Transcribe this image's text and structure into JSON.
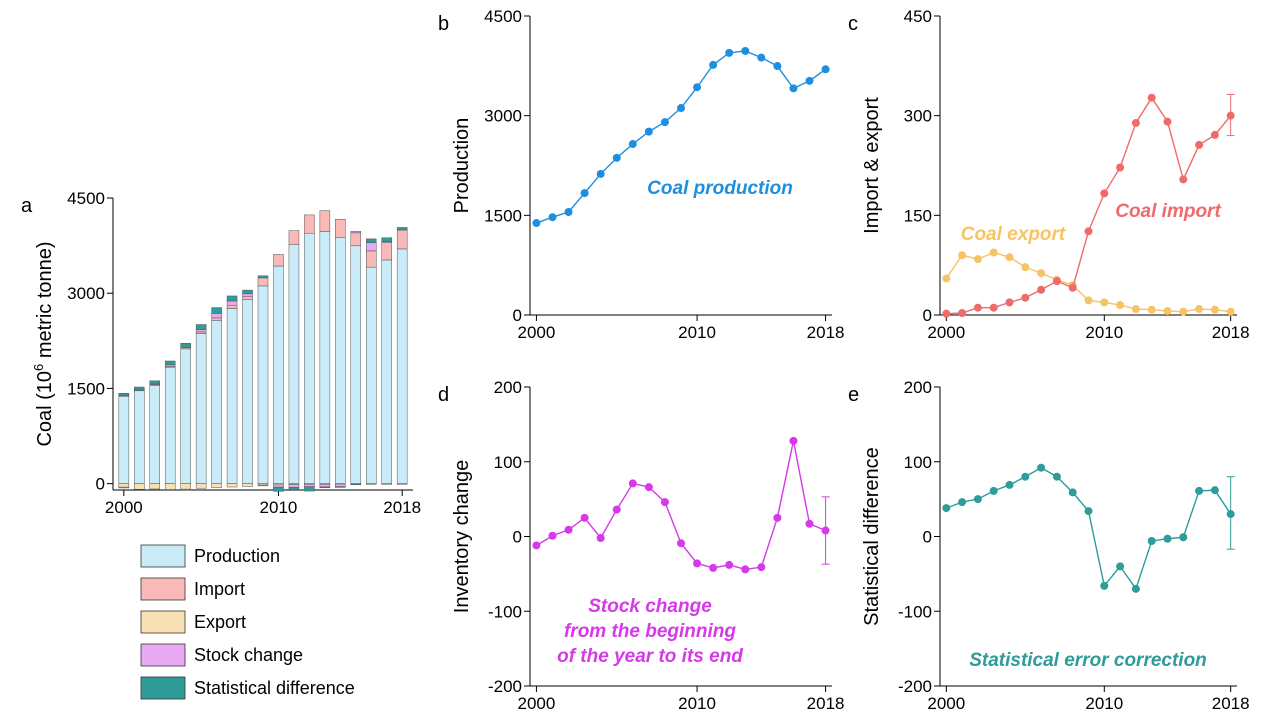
{
  "chart_data": [
    {
      "panel": "a",
      "type": "bar",
      "ylabel": "Coal (10",
      "ylabel_sup": "6",
      "ylabel_end": " metric tonne)",
      "ylim": [
        -100,
        4500
      ],
      "yticks": [
        0,
        1500,
        3000,
        4500
      ],
      "xticks": [
        2000,
        2010,
        2018
      ],
      "stacked": true,
      "categories": [
        2000,
        2001,
        2002,
        2003,
        2004,
        2005,
        2006,
        2007,
        2008,
        2009,
        2010,
        2011,
        2012,
        2013,
        2014,
        2015,
        2016,
        2017,
        2018
      ],
      "series": [
        {
          "name": "Production",
          "color": "#c9ecf8",
          "values": [
            1384,
            1472,
            1550,
            1835,
            2123,
            2365,
            2573,
            2760,
            2903,
            3115,
            3428,
            3764,
            3945,
            3974,
            3874,
            3747,
            3411,
            3524,
            3698
          ]
        },
        {
          "name": "Import",
          "color": "#f9b9b9",
          "values": [
            2,
            3,
            11,
            11,
            19,
            26,
            38,
            51,
            41,
            126,
            183,
            222,
            289,
            327,
            291,
            204,
            256,
            271,
            300
          ]
        },
        {
          "name": "Export",
          "color": "#f8e0b4",
          "values": [
            -55,
            -90,
            -84,
            -94,
            -87,
            -72,
            -63,
            -53,
            -45,
            -22,
            -19,
            -15,
            -9,
            -8,
            -6,
            -5,
            -9,
            -8,
            -5
          ]
        },
        {
          "name": "Stock change",
          "color": "#e8a8f4",
          "values": [
            -12,
            1,
            9,
            25,
            -2,
            36,
            71,
            66,
            46,
            -9,
            -36,
            -42,
            -38,
            -44,
            -41,
            25,
            128,
            17,
            8
          ]
        },
        {
          "name": "Statistical difference",
          "color": "#2e9c98",
          "values": [
            38,
            46,
            50,
            61,
            69,
            80,
            92,
            80,
            59,
            34,
            -66,
            -40,
            -70,
            -6,
            -3,
            -1,
            61,
            62,
            30
          ]
        }
      ]
    },
    {
      "panel": "b",
      "type": "line",
      "ylabel": "Production",
      "ylim": [
        0,
        4500
      ],
      "yticks": [
        0,
        1500,
        3000,
        4500
      ],
      "xticks": [
        2000,
        2010,
        2018
      ],
      "annotation": "Coal production",
      "color": "#1e8fe0",
      "x": [
        2000,
        2001,
        2002,
        2003,
        2004,
        2005,
        2006,
        2007,
        2008,
        2009,
        2010,
        2011,
        2012,
        2013,
        2014,
        2015,
        2016,
        2017,
        2018
      ],
      "y": [
        1384,
        1472,
        1550,
        1835,
        2123,
        2365,
        2573,
        2760,
        2903,
        3115,
        3428,
        3764,
        3945,
        3974,
        3874,
        3747,
        3411,
        3524,
        3698
      ]
    },
    {
      "panel": "c",
      "type": "line",
      "ylabel": "Import & export",
      "ylim": [
        0,
        450
      ],
      "yticks": [
        0,
        150,
        300,
        450
      ],
      "xticks": [
        2000,
        2010,
        2018
      ],
      "series": [
        {
          "name": "Coal import",
          "color": "#ef6b6b",
          "x": [
            2000,
            2001,
            2002,
            2003,
            2004,
            2005,
            2006,
            2007,
            2008,
            2009,
            2010,
            2011,
            2012,
            2013,
            2014,
            2015,
            2016,
            2017,
            2018
          ],
          "y": [
            2,
            3,
            11,
            11,
            19,
            26,
            38,
            51,
            41,
            126,
            183,
            222,
            289,
            327,
            291,
            204,
            256,
            271,
            300
          ],
          "error_bar": {
            "x": 2018,
            "low": 270,
            "high": 332
          }
        },
        {
          "name": "Coal export",
          "color": "#f6c464",
          "x": [
            2000,
            2001,
            2002,
            2003,
            2004,
            2005,
            2006,
            2007,
            2008,
            2009,
            2010,
            2011,
            2012,
            2013,
            2014,
            2015,
            2016,
            2017,
            2018
          ],
          "y": [
            55,
            90,
            84,
            94,
            87,
            72,
            63,
            53,
            45,
            22,
            19,
            15,
            9,
            8,
            6,
            5,
            9,
            8,
            5
          ]
        }
      ]
    },
    {
      "panel": "d",
      "type": "line",
      "ylabel": "Inventory change",
      "ylim": [
        -200,
        200
      ],
      "yticks": [
        -200,
        -100,
        0,
        100,
        200
      ],
      "xticks": [
        2000,
        2010,
        2018
      ],
      "annotation_lines": [
        "Stock change",
        "from the beginning",
        "of the year to its end"
      ],
      "color": "#d63ae8",
      "x": [
        2000,
        2001,
        2002,
        2003,
        2004,
        2005,
        2006,
        2007,
        2008,
        2009,
        2010,
        2011,
        2012,
        2013,
        2014,
        2015,
        2016,
        2017,
        2018
      ],
      "y": [
        -12,
        1,
        9,
        25,
        -2,
        36,
        71,
        66,
        46,
        -9,
        -36,
        -42,
        -38,
        -44,
        -41,
        25,
        128,
        17,
        8
      ],
      "error_bar": {
        "x": 2018,
        "low": -37,
        "high": 53
      }
    },
    {
      "panel": "e",
      "type": "line",
      "ylabel": "Statistical difference",
      "ylim": [
        -200,
        200
      ],
      "yticks": [
        -200,
        -100,
        0,
        100,
        200
      ],
      "xticks": [
        2000,
        2010,
        2018
      ],
      "annotation": "Statistical error correction",
      "color": "#2e9c98",
      "x": [
        2000,
        2001,
        2002,
        2003,
        2004,
        2005,
        2006,
        2007,
        2008,
        2009,
        2010,
        2011,
        2012,
        2013,
        2014,
        2015,
        2016,
        2017,
        2018
      ],
      "y": [
        38,
        46,
        50,
        61,
        69,
        80,
        92,
        80,
        59,
        34,
        -66,
        -40,
        -70,
        -6,
        -3,
        -1,
        61,
        62,
        30
      ],
      "error_bar": {
        "x": 2018,
        "low": -17,
        "high": 80
      }
    }
  ]
}
